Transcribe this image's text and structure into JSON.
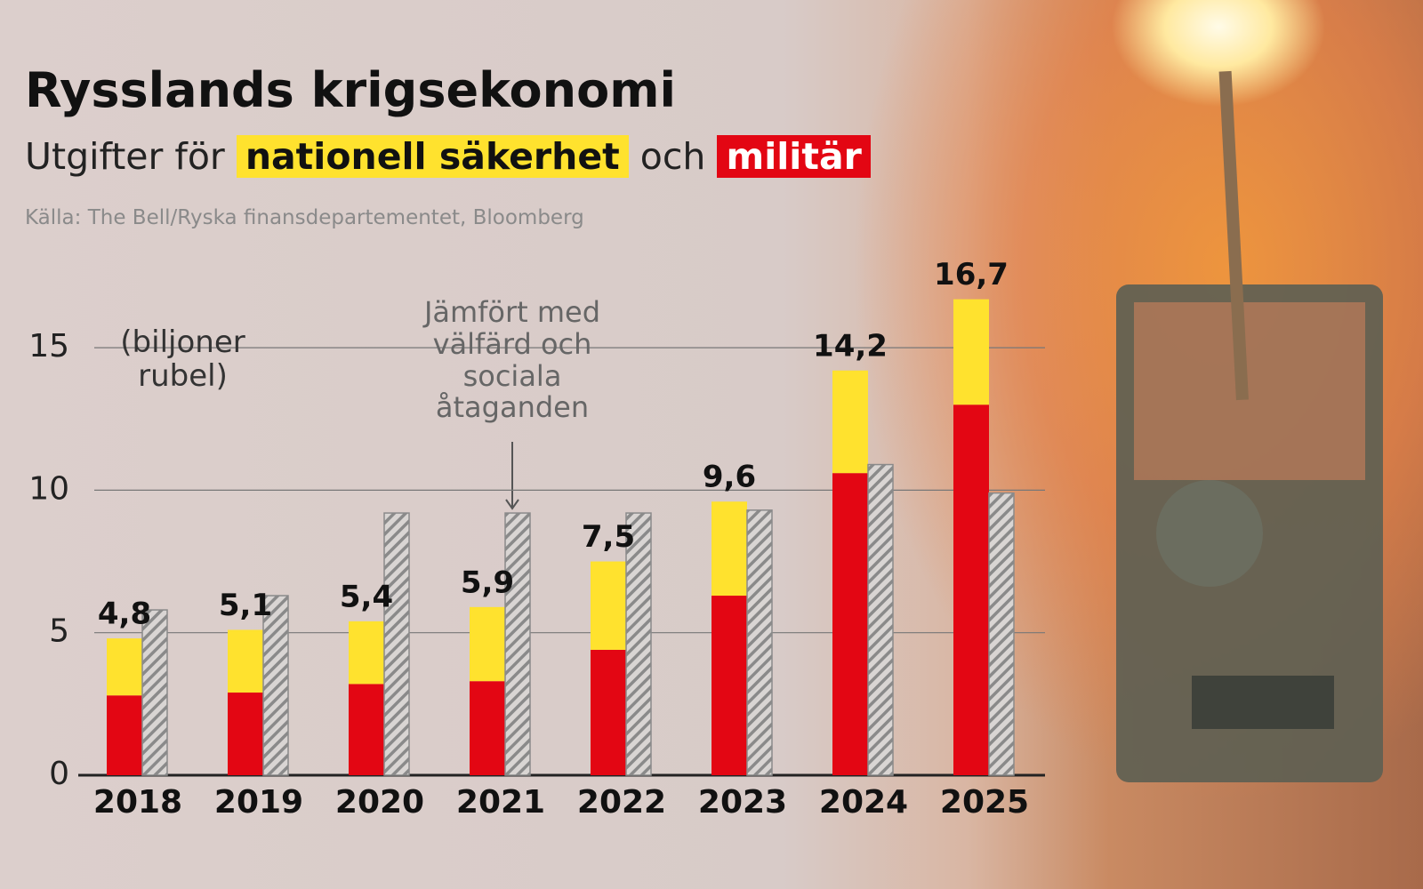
{
  "chart_data": {
    "type": "bar",
    "title": "Rysslands krigsekonomi",
    "subtitle": {
      "before": "Utgifter för",
      "between": "och"
    },
    "source": "Källa: The Bell/Ryska finansdepartementet, Bloomberg",
    "y_label": "(biljoner rubel)",
    "categories": [
      "2018",
      "2019",
      "2020",
      "2021",
      "2022",
      "2023",
      "2024",
      "2025"
    ],
    "series": [
      {
        "name": "militär",
        "color": "#e30613",
        "values": [
          2.8,
          2.9,
          3.2,
          3.3,
          4.4,
          6.3,
          10.6,
          13.0
        ]
      },
      {
        "name": "nationell säkerhet",
        "color": "#ffe22e",
        "values": [
          2.0,
          2.2,
          2.2,
          2.6,
          3.1,
          3.3,
          3.6,
          3.7
        ]
      },
      {
        "name": "Jämfört med välfärd och sociala åtaganden",
        "color": "#8a8a8a",
        "pattern": "hatched",
        "values": [
          5.8,
          6.3,
          9.2,
          9.2,
          9.2,
          9.3,
          10.9,
          9.9
        ]
      }
    ],
    "totals": {
      "values": [
        4.8,
        5.1,
        5.4,
        5.9,
        7.5,
        9.6,
        14.2,
        16.7
      ],
      "value_labels": [
        "4,8",
        "5,1",
        "5,4",
        "5,9",
        "7,5",
        "9,6",
        "14,2",
        "16,7"
      ]
    },
    "ylim": [
      0,
      17
    ],
    "yticks": [
      0,
      5,
      10,
      15
    ],
    "grid": true
  }
}
